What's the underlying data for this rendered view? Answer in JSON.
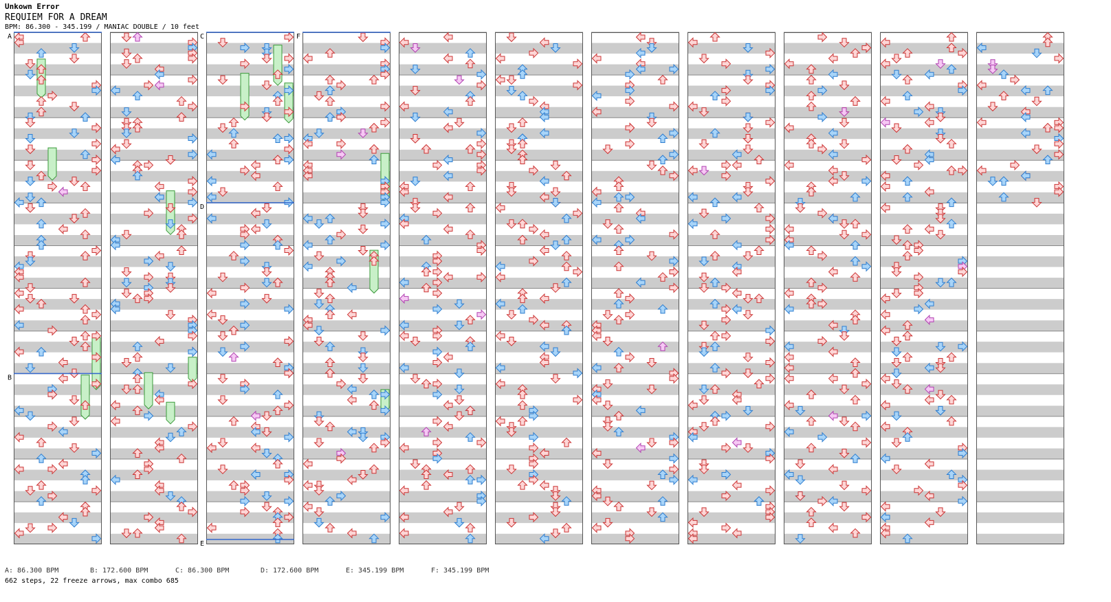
{
  "header": {
    "artist": "Unkown Error",
    "title": "REQUIEM FOR A DREAM",
    "info": "BPM: 86.300 - 345.199 / MANIAC DOUBLE / 10 feet"
  },
  "bpm_section_labels": [
    "A",
    "B",
    "C",
    "D",
    "E",
    "F"
  ],
  "bpm_legend": [
    "A: 86.300 BPM",
    "B: 172.600 BPM",
    "C: 86.300 BPM",
    "D: 172.600 BPM",
    "E: 345.199 BPM",
    "F: 345.199 BPM"
  ],
  "stats": "662 steps, 22 freeze arrows, max combo 685",
  "colors": {
    "stripe": "#cccccc",
    "border": "#555555",
    "bpm_line": "#3366cc",
    "arrow_red_fill": "#fdd6d6",
    "arrow_red_stroke": "#cc3333",
    "arrow_blue_fill": "#a8d4f8",
    "arrow_blue_stroke": "#2c7dd0",
    "arrow_pink_fill": "#f6c8f4",
    "arrow_pink_stroke": "#b040b0",
    "freeze_fill": "#c8f0c8",
    "freeze_stroke": "#3a9a3a"
  },
  "icons": [
    "left-arrow-icon",
    "down-arrow-icon",
    "up-arrow-icon",
    "right-arrow-icon"
  ]
}
